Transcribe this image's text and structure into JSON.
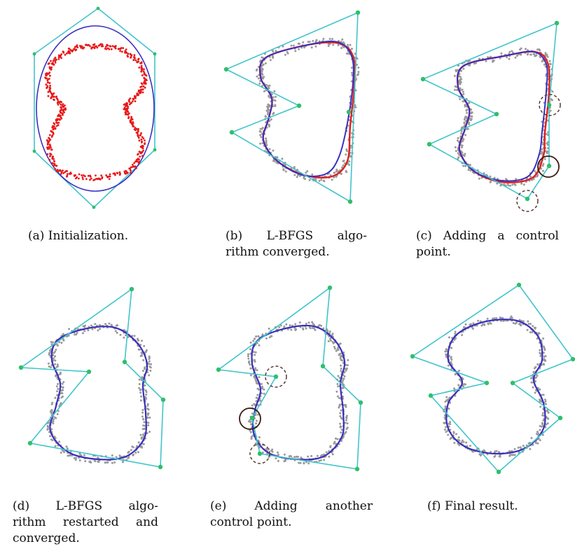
{
  "figure": {
    "panels": [
      {
        "id": "a",
        "caption_lines": [
          "(a) Initialization."
        ],
        "elements": [
          "control-polygon",
          "ellipse-curve",
          "red-sample-points",
          "control-points"
        ]
      },
      {
        "id": "b",
        "caption_lines": [
          "(b) L-BFGS algo-",
          "rithm converged."
        ],
        "elements": [
          "control-polygon",
          "fitted-curve",
          "gray-sample-points",
          "control-points"
        ]
      },
      {
        "id": "c",
        "caption_lines": [
          "(c) Adding a control",
          "point."
        ],
        "elements": [
          "control-polygon",
          "fitted-curve",
          "gray-sample-points",
          "control-points",
          "highlight-circles"
        ]
      },
      {
        "id": "d",
        "caption_lines": [
          "(d) L-BFGS algo-",
          "rithm restarted and",
          "converged."
        ],
        "elements": [
          "control-polygon",
          "fitted-curve",
          "gray-sample-points",
          "control-points"
        ]
      },
      {
        "id": "e",
        "caption_lines": [
          "(e) Adding another",
          "control point."
        ],
        "elements": [
          "control-polygon",
          "fitted-curve",
          "gray-sample-points",
          "control-points",
          "highlight-circles"
        ]
      },
      {
        "id": "f",
        "caption_lines": [
          "(f) Final result."
        ],
        "elements": [
          "control-polygon",
          "fitted-curve",
          "gray-sample-points",
          "control-points"
        ]
      }
    ],
    "colors": {
      "polygon": "#40c4cc",
      "control_point": "#2fbf6a",
      "curve": "#3a2fbf",
      "curve_error": "#e02020",
      "sample_red": "#e81818",
      "sample_gray": "#9a9a9a",
      "circle_solid": "#3a1a10",
      "circle_dashed": "#5a3a30"
    }
  }
}
